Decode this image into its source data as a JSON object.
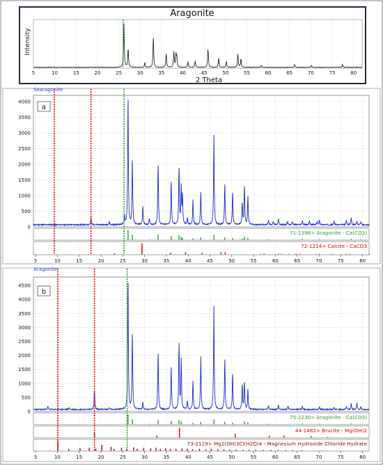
{
  "chart_data": [
    {
      "type": "line",
      "title": "Aragonite",
      "xlabel": "2 Theta",
      "ylabel": "Intensity",
      "xlim": [
        5,
        82
      ],
      "x_ticks": [
        5,
        10,
        15,
        20,
        25,
        30,
        35,
        40,
        45,
        50,
        55,
        60,
        65,
        70,
        75,
        80
      ],
      "peaks": [
        [
          26.2,
          0.9
        ],
        [
          27.2,
          0.4
        ],
        [
          31.1,
          0.1
        ],
        [
          33.1,
          0.62
        ],
        [
          36.1,
          0.28
        ],
        [
          37.9,
          0.33
        ],
        [
          38.4,
          0.28
        ],
        [
          38.6,
          0.18
        ],
        [
          41.2,
          0.12
        ],
        [
          42.9,
          0.14
        ],
        [
          45.9,
          0.38
        ],
        [
          48.4,
          0.2
        ],
        [
          50.2,
          0.12
        ],
        [
          52.9,
          0.28
        ],
        [
          53.6,
          0.18
        ],
        [
          58.4,
          0.04
        ],
        [
          66.2,
          0.06
        ],
        [
          70.1,
          0.04
        ],
        [
          77.4,
          0.06
        ]
      ]
    },
    {
      "type": "line",
      "panel_label": "a",
      "series_name": "Searagonite",
      "ylim": [
        0,
        4200
      ],
      "y_ticks": [
        0,
        500,
        1000,
        1500,
        2000,
        2500,
        3000,
        3500,
        4000
      ],
      "x_ticks": [
        5,
        10,
        15,
        20,
        25,
        30,
        35,
        40,
        45,
        50,
        55,
        60,
        65,
        70,
        75,
        80
      ],
      "xlim": [
        4.5,
        81.5
      ],
      "peaks": [
        [
          17.7,
          230
        ],
        [
          21.9,
          100
        ],
        [
          25.4,
          300
        ],
        [
          26.2,
          4150
        ],
        [
          27.2,
          2100
        ],
        [
          29.6,
          600
        ],
        [
          31.1,
          200
        ],
        [
          33.1,
          1980
        ],
        [
          36.1,
          1450
        ],
        [
          37.9,
          1850
        ],
        [
          38.4,
          1200
        ],
        [
          38.7,
          900
        ],
        [
          39.8,
          200
        ],
        [
          41.1,
          800
        ],
        [
          42.9,
          1050
        ],
        [
          45.9,
          2850
        ],
        [
          48.4,
          1350
        ],
        [
          50.2,
          1050
        ],
        [
          52.4,
          700
        ],
        [
          52.9,
          1250
        ],
        [
          53.7,
          900
        ],
        [
          58.4,
          150
        ],
        [
          59.5,
          100
        ],
        [
          60.7,
          180
        ],
        [
          62.8,
          120
        ],
        [
          63.9,
          110
        ],
        [
          66.2,
          140
        ],
        [
          67.8,
          120
        ],
        [
          69.6,
          100
        ],
        [
          70.1,
          160
        ],
        [
          73.5,
          120
        ],
        [
          76.3,
          150
        ],
        [
          77.4,
          240
        ],
        [
          78.7,
          100
        ],
        [
          79.6,
          100
        ]
      ],
      "markers": [
        {
          "x": 9.3,
          "color": "#e00000"
        },
        {
          "x": 17.7,
          "color": "#e00000"
        },
        {
          "x": 25.3,
          "color": "#2aa02a"
        }
      ],
      "reference_patterns": [
        {
          "label": "71-2396> Aragonite - Ca(CO3)",
          "color": "#2aa02a",
          "sticks": [
            [
              26.2,
              1.0
            ],
            [
              27.2,
              0.5
            ],
            [
              31.1,
              0.05
            ],
            [
              33.1,
              0.55
            ],
            [
              36.1,
              0.35
            ],
            [
              37.9,
              0.45
            ],
            [
              38.4,
              0.3
            ],
            [
              38.7,
              0.2
            ],
            [
              41.1,
              0.15
            ],
            [
              42.9,
              0.25
            ],
            [
              45.9,
              0.5
            ],
            [
              48.4,
              0.25
            ],
            [
              50.2,
              0.18
            ],
            [
              52.4,
              0.1
            ],
            [
              52.9,
              0.3
            ],
            [
              53.7,
              0.2
            ],
            [
              58.4,
              0.05
            ],
            [
              66.2,
              0.08
            ],
            [
              70.1,
              0.06
            ],
            [
              77.4,
              0.08
            ],
            [
              79.6,
              0.05
            ]
          ]
        },
        {
          "label": "72-1214> Calcite - CaCO3",
          "color": "#e00000",
          "sticks": [
            [
              23.1,
              0.1
            ],
            [
              29.4,
              1.0
            ],
            [
              36.0,
              0.15
            ],
            [
              39.4,
              0.2
            ],
            [
              43.2,
              0.15
            ],
            [
              47.5,
              0.2
            ],
            [
              48.5,
              0.2
            ],
            [
              56.6,
              0.05
            ],
            [
              57.4,
              0.08
            ],
            [
              60.7,
              0.06
            ],
            [
              61.4,
              0.05
            ],
            [
              63.1,
              0.05
            ],
            [
              64.7,
              0.06
            ],
            [
              65.6,
              0.05
            ],
            [
              69.2,
              0.04
            ],
            [
              70.2,
              0.05
            ],
            [
              72.9,
              0.05
            ],
            [
              76.3,
              0.05
            ],
            [
              77.1,
              0.05
            ],
            [
              81.5,
              0.05
            ]
          ]
        }
      ]
    },
    {
      "type": "line",
      "panel_label": "b",
      "series_name": "Aragonite",
      "ylim": [
        0,
        4800
      ],
      "y_ticks": [
        0,
        500,
        1000,
        1500,
        2000,
        2500,
        3000,
        3500,
        4000,
        4500
      ],
      "x_ticks": [
        5,
        10,
        15,
        20,
        25,
        30,
        35,
        40,
        45,
        50,
        55,
        60,
        65,
        70,
        75,
        80
      ],
      "xlim": [
        4.5,
        81.5
      ],
      "peaks": [
        [
          7.8,
          120
        ],
        [
          12.6,
          60
        ],
        [
          18.5,
          700
        ],
        [
          21.9,
          60
        ],
        [
          26.2,
          4700
        ],
        [
          27.2,
          2800
        ],
        [
          29.6,
          250
        ],
        [
          33.1,
          2100
        ],
        [
          36.1,
          1550
        ],
        [
          37.9,
          2400
        ],
        [
          38.4,
          1750
        ],
        [
          39.8,
          300
        ],
        [
          41.1,
          1000
        ],
        [
          42.9,
          1900
        ],
        [
          45.9,
          3700
        ],
        [
          48.4,
          1850
        ],
        [
          50.2,
          1300
        ],
        [
          52.4,
          900
        ],
        [
          52.9,
          1000
        ],
        [
          53.7,
          700
        ],
        [
          58.4,
          120
        ],
        [
          60.7,
          150
        ],
        [
          62.9,
          110
        ],
        [
          66.2,
          120
        ],
        [
          70.1,
          100
        ],
        [
          73.5,
          80
        ],
        [
          76.3,
          100
        ],
        [
          77.4,
          200
        ],
        [
          78.7,
          220
        ],
        [
          79.6,
          100
        ]
      ],
      "markers": [
        {
          "x": 10.1,
          "color": "#e00000"
        },
        {
          "x": 18.5,
          "color": "#e00000"
        },
        {
          "x": 26.0,
          "color": "#2aa02a"
        }
      ],
      "reference_patterns": [
        {
          "label": "75-2230> Aragonite - Ca(CO3)",
          "color": "#2aa02a",
          "sticks": [
            [
              26.2,
              1.0
            ],
            [
              27.2,
              0.5
            ],
            [
              31.1,
              0.05
            ],
            [
              33.1,
              0.45
            ],
            [
              36.1,
              0.35
            ],
            [
              37.9,
              0.45
            ],
            [
              38.4,
              0.3
            ],
            [
              41.1,
              0.15
            ],
            [
              42.9,
              0.25
            ],
            [
              45.9,
              0.5
            ],
            [
              48.4,
              0.25
            ],
            [
              50.2,
              0.18
            ],
            [
              52.9,
              0.3
            ],
            [
              53.7,
              0.2
            ],
            [
              58.4,
              0.05
            ],
            [
              66.2,
              0.08
            ],
            [
              70.1,
              0.06
            ],
            [
              77.4,
              0.08
            ]
          ]
        },
        {
          "label": "44-1482> Brucite - Mg(OH)2",
          "color": "#e00000",
          "sticks": [
            [
              18.5,
              0.5
            ],
            [
              32.8,
              0.2
            ],
            [
              38.0,
              1.0
            ],
            [
              50.8,
              0.4
            ],
            [
              58.6,
              0.2
            ],
            [
              62.0,
              0.2
            ],
            [
              68.2,
              0.15
            ],
            [
              72.0,
              0.05
            ]
          ]
        },
        {
          "label": "73-2119> Mg2(OH)3Cl(H2O)4 - Magnesium Hydroxide Chloride Hydrate",
          "color": "#8b1010",
          "sticks": [
            [
              10.1,
              1.0
            ],
            [
              12.6,
              0.2
            ],
            [
              15.2,
              0.25
            ],
            [
              17.3,
              0.3
            ],
            [
              18.8,
              0.2
            ],
            [
              20.2,
              0.6
            ],
            [
              22.3,
              0.4
            ],
            [
              23.0,
              0.2
            ],
            [
              24.7,
              0.3
            ],
            [
              25.9,
              0.2
            ],
            [
              27.5,
              0.35
            ],
            [
              28.3,
              0.2
            ],
            [
              29.8,
              0.3
            ],
            [
              31.4,
              0.25
            ],
            [
              32.6,
              0.3
            ],
            [
              33.6,
              0.2
            ],
            [
              34.8,
              0.25
            ],
            [
              35.9,
              0.2
            ],
            [
              37.2,
              0.2
            ],
            [
              38.6,
              0.25
            ],
            [
              39.8,
              0.2
            ],
            [
              41.0,
              0.15
            ],
            [
              42.6,
              0.2
            ],
            [
              44.1,
              0.15
            ],
            [
              45.3,
              0.2
            ],
            [
              46.8,
              0.15
            ],
            [
              48.2,
              0.15
            ],
            [
              49.5,
              0.12
            ],
            [
              51.0,
              0.12
            ],
            [
              52.6,
              0.1
            ],
            [
              54.0,
              0.1
            ],
            [
              55.5,
              0.1
            ],
            [
              57.2,
              0.08
            ],
            [
              59.0,
              0.08
            ],
            [
              60.6,
              0.08
            ],
            [
              62.4,
              0.06
            ],
            [
              64.0,
              0.06
            ],
            [
              66.0,
              0.05
            ]
          ]
        }
      ]
    }
  ]
}
